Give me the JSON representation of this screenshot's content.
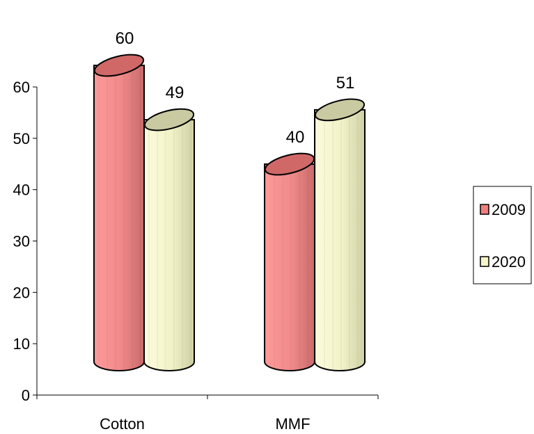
{
  "chart_data": {
    "type": "bar",
    "style": "3d-cylinder",
    "categories": [
      "Cotton",
      "MMF"
    ],
    "series": [
      {
        "name": "2009",
        "values": [
          60,
          40
        ],
        "color": "#f08080"
      },
      {
        "name": "2020",
        "values": [
          49,
          51
        ],
        "color": "#f5f5c8"
      }
    ],
    "data_labels": [
      [
        "60",
        "40"
      ],
      [
        "49",
        "51"
      ]
    ],
    "yticks": [
      "0",
      "10",
      "20",
      "30",
      "40",
      "50",
      "60"
    ],
    "ylim": [
      0,
      60
    ],
    "grid": false,
    "legend_position": "right"
  }
}
